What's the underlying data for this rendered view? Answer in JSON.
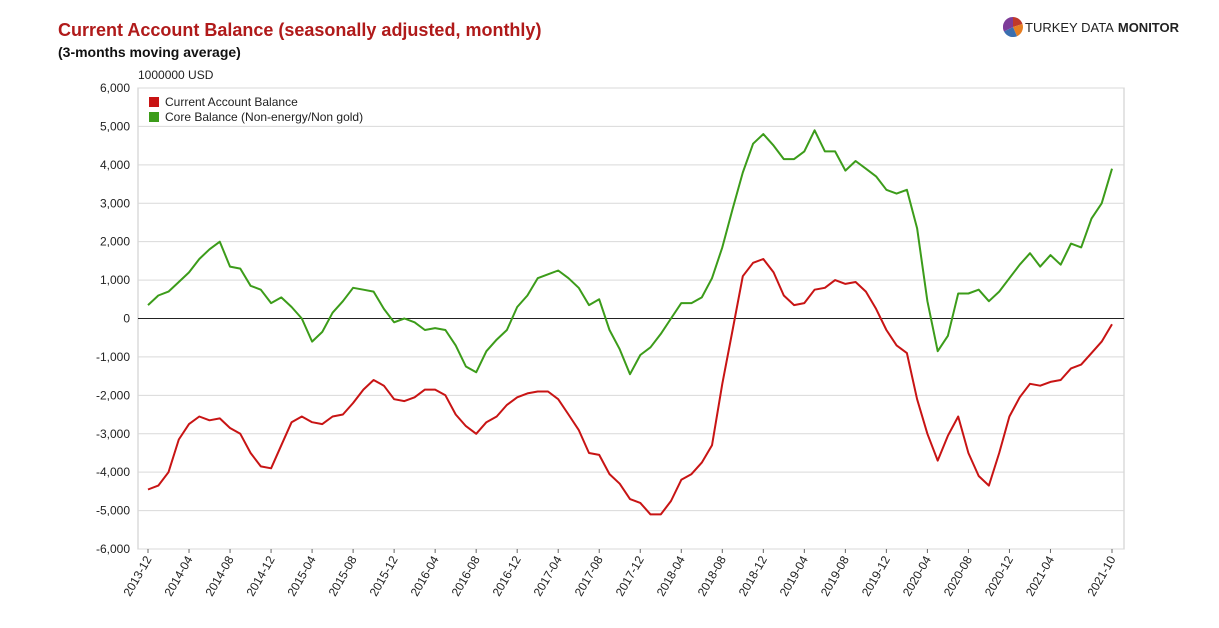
{
  "header": {
    "title": "Current Account Balance (seasonally adjusted, monthly)",
    "subtitle": "(3-months moving average)",
    "brand_light": "TURKEY DATA",
    "brand_bold": "MONITOR"
  },
  "chart_data": {
    "type": "line",
    "ylabel": "1000000 USD",
    "ylim": [
      -6000,
      6000
    ],
    "yticks": [
      6000,
      5000,
      4000,
      3000,
      2000,
      1000,
      0,
      -1000,
      -2000,
      -3000,
      -4000,
      -5000,
      -6000
    ],
    "ytick_labels": [
      "6,000",
      "5,000",
      "4,000",
      "3,000",
      "2,000",
      "1,000",
      "0",
      "-1,000",
      "-2,000",
      "-3,000",
      "-4,000",
      "-5,000",
      "-6,000"
    ],
    "xtick_labels": [
      "2013-12",
      "2014-04",
      "2014-08",
      "2014-12",
      "2015-04",
      "2015-08",
      "2015-12",
      "2016-04",
      "2016-08",
      "2016-12",
      "2017-04",
      "2017-08",
      "2017-12",
      "2018-04",
      "2018-08",
      "2018-12",
      "2019-04",
      "2019-08",
      "2019-12",
      "2020-04",
      "2020-08",
      "2020-12",
      "2021-04",
      "2021-10"
    ],
    "xtick_index": [
      0,
      4,
      8,
      12,
      16,
      20,
      24,
      28,
      32,
      36,
      40,
      44,
      48,
      52,
      56,
      60,
      64,
      68,
      72,
      76,
      80,
      84,
      88,
      94
    ],
    "x_start": "2013-12",
    "x_end": "2021-10",
    "legend_position": "top-left",
    "grid": true,
    "series": [
      {
        "name": "Current Account Balance",
        "color": "#c81414",
        "values": [
          -4450,
          -4350,
          -4000,
          -3150,
          -2750,
          -2550,
          -2650,
          -2600,
          -2850,
          -3000,
          -3500,
          -3850,
          -3900,
          -3300,
          -2700,
          -2550,
          -2700,
          -2750,
          -2550,
          -2500,
          -2200,
          -1850,
          -1600,
          -1750,
          -2100,
          -2150,
          -2050,
          -1850,
          -1850,
          -2000,
          -2500,
          -2800,
          -3000,
          -2700,
          -2550,
          -2250,
          -2050,
          -1950,
          -1900,
          -1900,
          -2100,
          -2500,
          -2900,
          -3500,
          -3550,
          -4050,
          -4300,
          -4700,
          -4800,
          -5100,
          -5100,
          -4750,
          -4200,
          -4050,
          -3750,
          -3300,
          -1700,
          -300,
          1100,
          1450,
          1550,
          1200,
          600,
          350,
          400,
          750,
          800,
          1000,
          900,
          950,
          700,
          250,
          -300,
          -700,
          -900,
          -2100,
          -3000,
          -3700,
          -3050,
          -2550,
          -3500,
          -4100,
          -4350,
          -3500,
          -2550,
          -2050,
          -1700,
          -1750,
          -1650,
          -1600,
          -1300,
          -1200,
          -900,
          -600,
          -150
        ]
      },
      {
        "name": "Core Balance (Non-energy/Non gold)",
        "color": "#3c9c1a",
        "values": [
          350,
          600,
          700,
          950,
          1200,
          1550,
          1800,
          2000,
          1350,
          1300,
          850,
          750,
          400,
          550,
          300,
          0,
          -600,
          -350,
          150,
          450,
          800,
          750,
          700,
          250,
          -100,
          0,
          -100,
          -300,
          -250,
          -300,
          -700,
          -1250,
          -1400,
          -850,
          -550,
          -300,
          300,
          600,
          1050,
          1150,
          1250,
          1050,
          800,
          350,
          500,
          -300,
          -800,
          -1450,
          -950,
          -750,
          -400,
          0,
          400,
          400,
          550,
          1050,
          1850,
          2850,
          3800,
          4550,
          4800,
          4500,
          4150,
          4150,
          4350,
          4900,
          4350,
          4350,
          3850,
          4100,
          3900,
          3700,
          3350,
          3250,
          3350,
          2350,
          450,
          -850,
          -450,
          650,
          650,
          750,
          450,
          700,
          1050,
          1400,
          1700,
          1350,
          1650,
          1400,
          1950,
          1850,
          2600,
          3000,
          3900
        ]
      }
    ]
  }
}
